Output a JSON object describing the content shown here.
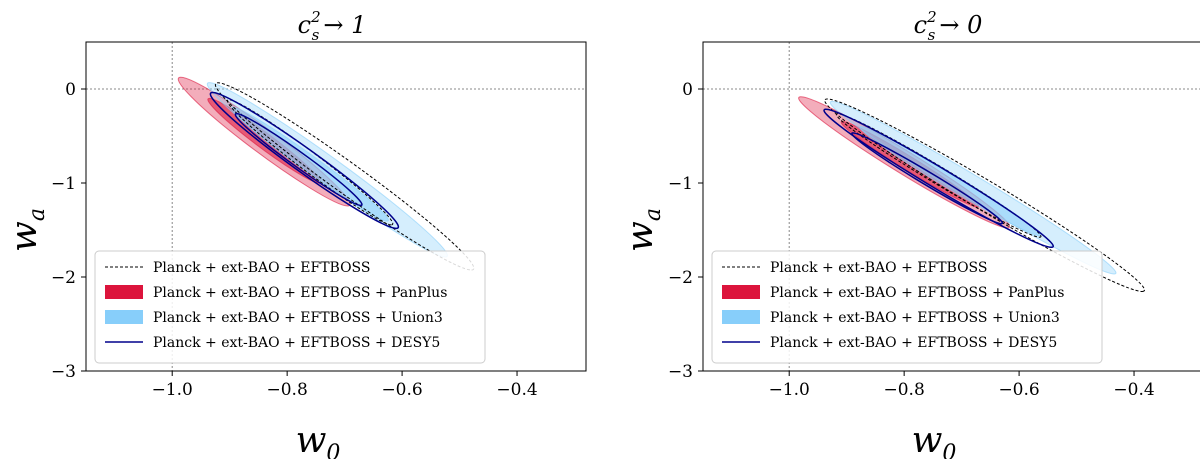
{
  "colors": {
    "baseline": "#000000",
    "panplus": "#dc143c",
    "union3": "#87cefa",
    "desy5": "#00008b",
    "reference": "#888888"
  },
  "chart_data": [
    {
      "type": "contour",
      "title": {
        "base": "c",
        "sup": "2",
        "sub": "s",
        "suffix": "→ 1"
      },
      "xlabel": {
        "base": "w",
        "sub": "0"
      },
      "ylabel": {
        "base": "w",
        "sub": "a"
      },
      "xlim": [
        -1.15,
        -0.28
      ],
      "ylim": [
        -3,
        0.5
      ],
      "xticks": [
        -1.0,
        -0.8,
        -0.6,
        -0.4
      ],
      "xtick_labels": [
        "−1.0",
        "−0.8",
        "−0.6",
        "−0.4"
      ],
      "yticks": [
        0,
        -1,
        -2,
        -3
      ],
      "ytick_labels": [
        "0",
        "−1",
        "−2",
        "−3"
      ],
      "reference_lines": {
        "x": -1.0,
        "y": 0
      },
      "legend_location": "lower-left",
      "series": [
        {
          "name": "Planck + ext-BAO + EFTBOSS",
          "style": "dashed",
          "contours": [
            {
              "level": "95%",
              "cx": -0.7,
              "cy": -0.93,
              "theta": -77.5,
              "a": 1.02,
              "b": 0.044
            },
            {
              "level": "68%",
              "cx": -0.76,
              "cy": -0.78,
              "theta": -78.0,
              "a": 0.68,
              "b": 0.027
            }
          ]
        },
        {
          "name": "Planck + ext-BAO + EFTBOSS + PanPlus",
          "style": "filled",
          "contours": [
            {
              "level": "95%",
              "cx": -0.84,
              "cy": -0.56,
              "theta": -78.0,
              "a": 0.7,
              "b": 0.035
            },
            {
              "level": "68%",
              "cx": -0.84,
              "cy": -0.55,
              "theta": -78.0,
              "a": 0.46,
              "b": 0.022
            }
          ]
        },
        {
          "name": "Planck + ext-BAO + EFTBOSS + Union3",
          "style": "filled",
          "contours": [
            {
              "level": "95%",
              "cx": -0.73,
              "cy": -0.86,
              "theta": -77.5,
              "a": 0.95,
              "b": 0.038
            },
            {
              "level": "68%",
              "cx": -0.76,
              "cy": -0.8,
              "theta": -77.5,
              "a": 0.62,
              "b": 0.024
            }
          ]
        },
        {
          "name": "Planck + ext-BAO + EFTBOSS + DESY5",
          "style": "solid",
          "contours": [
            {
              "level": "95%",
              "cx": -0.77,
              "cy": -0.76,
              "theta": -77.5,
              "a": 0.74,
              "b": 0.034
            },
            {
              "level": "68%",
              "cx": -0.78,
              "cy": -0.75,
              "theta": -77.5,
              "a": 0.5,
              "b": 0.021
            }
          ]
        }
      ]
    },
    {
      "type": "contour",
      "title": {
        "base": "c",
        "sup": "2",
        "sub": "s",
        "suffix": "→ 0"
      },
      "xlabel": {
        "base": "w",
        "sub": "0"
      },
      "ylabel": {
        "base": "w",
        "sub": "a"
      },
      "xlim": [
        -1.15,
        -0.28
      ],
      "ylim": [
        -3,
        0.5
      ],
      "xticks": [
        -1.0,
        -0.8,
        -0.6,
        -0.4
      ],
      "xtick_labels": [
        "−1.0",
        "−0.8",
        "−0.6",
        "−0.4"
      ],
      "yticks": [
        0,
        -1,
        -2,
        -3
      ],
      "ytick_labels": [
        "0",
        "−1",
        "−2",
        "−3"
      ],
      "reference_lines": {
        "x": -1.0,
        "y": 0
      },
      "legend_location": "lower-left",
      "series": [
        {
          "name": "Planck + ext-BAO + EFTBOSS",
          "style": "dashed",
          "contours": [
            {
              "level": "95%",
              "cx": -0.66,
              "cy": -1.13,
              "theta": -75.0,
              "a": 1.06,
              "b": 0.048
            },
            {
              "level": "68%",
              "cx": -0.74,
              "cy": -0.92,
              "theta": -75.0,
              "a": 0.68,
              "b": 0.028
            }
          ]
        },
        {
          "name": "Planck + ext-BAO + EFTBOSS + PanPlus",
          "style": "filled",
          "contours": [
            {
              "level": "95%",
              "cx": -0.8,
              "cy": -0.78,
              "theta": -75.5,
              "a": 0.72,
              "b": 0.036
            },
            {
              "level": "68%",
              "cx": -0.79,
              "cy": -0.8,
              "theta": -75.5,
              "a": 0.47,
              "b": 0.022
            }
          ]
        },
        {
          "name": "Planck + ext-BAO + EFTBOSS + Union3",
          "style": "filled",
          "contours": [
            {
              "level": "95%",
              "cx": -0.68,
              "cy": -1.05,
              "theta": -75.0,
              "a": 0.95,
              "b": 0.038
            },
            {
              "level": "68%",
              "cx": -0.72,
              "cy": -0.98,
              "theta": -75.0,
              "a": 0.6,
              "b": 0.024
            }
          ]
        },
        {
          "name": "Planck + ext-BAO + EFTBOSS + DESY5",
          "style": "solid",
          "contours": [
            {
              "level": "95%",
              "cx": -0.74,
              "cy": -0.95,
              "theta": -75.0,
              "a": 0.76,
              "b": 0.034
            },
            {
              "level": "68%",
              "cx": -0.76,
              "cy": -0.95,
              "theta": -75.0,
              "a": 0.5,
              "b": 0.021
            }
          ]
        }
      ]
    }
  ]
}
